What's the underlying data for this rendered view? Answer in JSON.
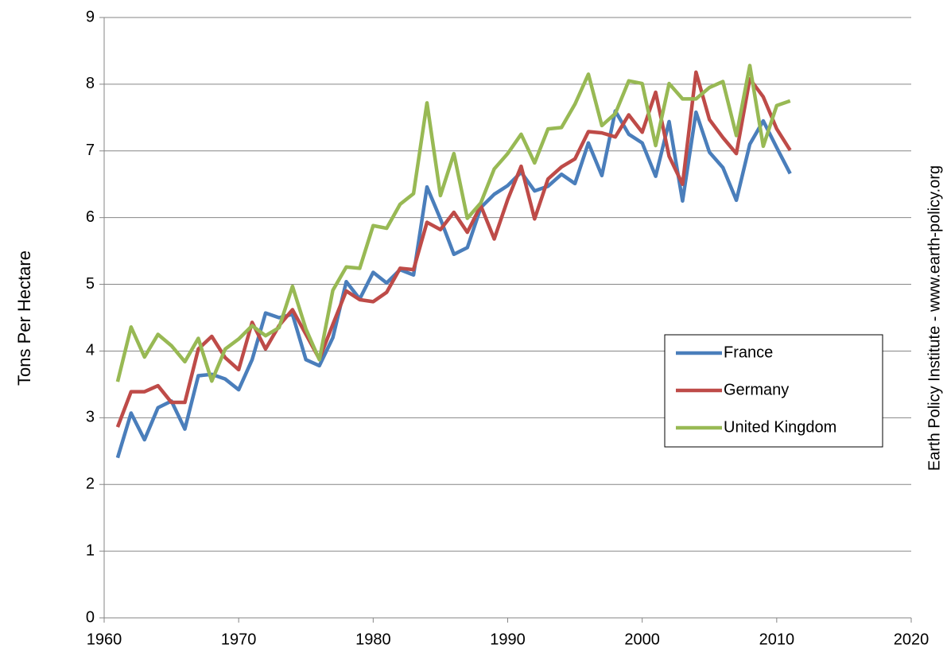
{
  "chart_data": {
    "type": "line",
    "ylabel": "Tons Per Hectare",
    "source": "Earth Policy Institute - www.earth-policy.org",
    "x": [
      1961,
      1962,
      1963,
      1964,
      1965,
      1966,
      1967,
      1968,
      1969,
      1970,
      1971,
      1972,
      1973,
      1974,
      1975,
      1976,
      1977,
      1978,
      1979,
      1980,
      1981,
      1982,
      1983,
      1984,
      1985,
      1986,
      1987,
      1988,
      1989,
      1990,
      1991,
      1992,
      1993,
      1994,
      1995,
      1996,
      1997,
      1998,
      1999,
      2000,
      2001,
      2002,
      2003,
      2004,
      2005,
      2006,
      2007,
      2008,
      2009,
      2010,
      2011
    ],
    "series": [
      {
        "name": "France",
        "color": "#4a7ebb",
        "values": [
          2.4,
          3.07,
          2.67,
          3.15,
          3.25,
          2.83,
          3.63,
          3.65,
          3.58,
          3.42,
          3.87,
          4.57,
          4.5,
          4.55,
          3.87,
          3.78,
          4.2,
          5.04,
          4.78,
          5.18,
          5.02,
          5.22,
          5.14,
          6.46,
          5.98,
          5.45,
          5.55,
          6.15,
          6.35,
          6.48,
          6.68,
          6.4,
          6.47,
          6.65,
          6.51,
          7.12,
          6.63,
          7.6,
          7.25,
          7.12,
          6.62,
          7.44,
          6.25,
          7.58,
          6.98,
          6.75,
          6.26,
          7.1,
          7.45,
          7.05,
          6.66
        ]
      },
      {
        "name": "Germany",
        "color": "#be4b48",
        "values": [
          2.86,
          3.39,
          3.39,
          3.48,
          3.23,
          3.23,
          4.03,
          4.22,
          3.9,
          3.72,
          4.43,
          4.03,
          4.38,
          4.62,
          4.25,
          3.88,
          4.4,
          4.9,
          4.77,
          4.74,
          4.88,
          5.24,
          5.22,
          5.93,
          5.82,
          6.08,
          5.78,
          6.18,
          5.68,
          6.27,
          6.77,
          5.98,
          6.58,
          6.76,
          6.88,
          7.29,
          7.27,
          7.21,
          7.54,
          7.28,
          7.88,
          6.92,
          6.5,
          8.18,
          7.47,
          7.2,
          6.96,
          8.08,
          7.81,
          7.33,
          7.01
        ]
      },
      {
        "name": "United Kingdom",
        "color": "#98b954",
        "values": [
          3.54,
          4.36,
          3.91,
          4.25,
          4.08,
          3.84,
          4.19,
          3.55,
          4.03,
          4.18,
          4.38,
          4.23,
          4.35,
          4.97,
          4.33,
          3.87,
          4.91,
          5.26,
          5.24,
          5.88,
          5.84,
          6.2,
          6.36,
          7.72,
          6.33,
          6.96,
          5.99,
          6.22,
          6.73,
          6.96,
          7.25,
          6.82,
          7.33,
          7.35,
          7.7,
          8.15,
          7.38,
          7.56,
          8.05,
          8.01,
          7.08,
          8.01,
          7.78,
          7.78,
          7.95,
          8.04,
          7.23,
          8.28,
          7.07,
          7.68,
          7.75
        ]
      }
    ],
    "xlim": [
      1960,
      2020
    ],
    "xticks": [
      1960,
      1970,
      1980,
      1990,
      2000,
      2010,
      2020
    ],
    "ylim": [
      0,
      9
    ],
    "yticks": [
      0,
      1,
      2,
      3,
      4,
      5,
      6,
      7,
      8,
      9
    ],
    "grid": true,
    "legend": "right"
  }
}
